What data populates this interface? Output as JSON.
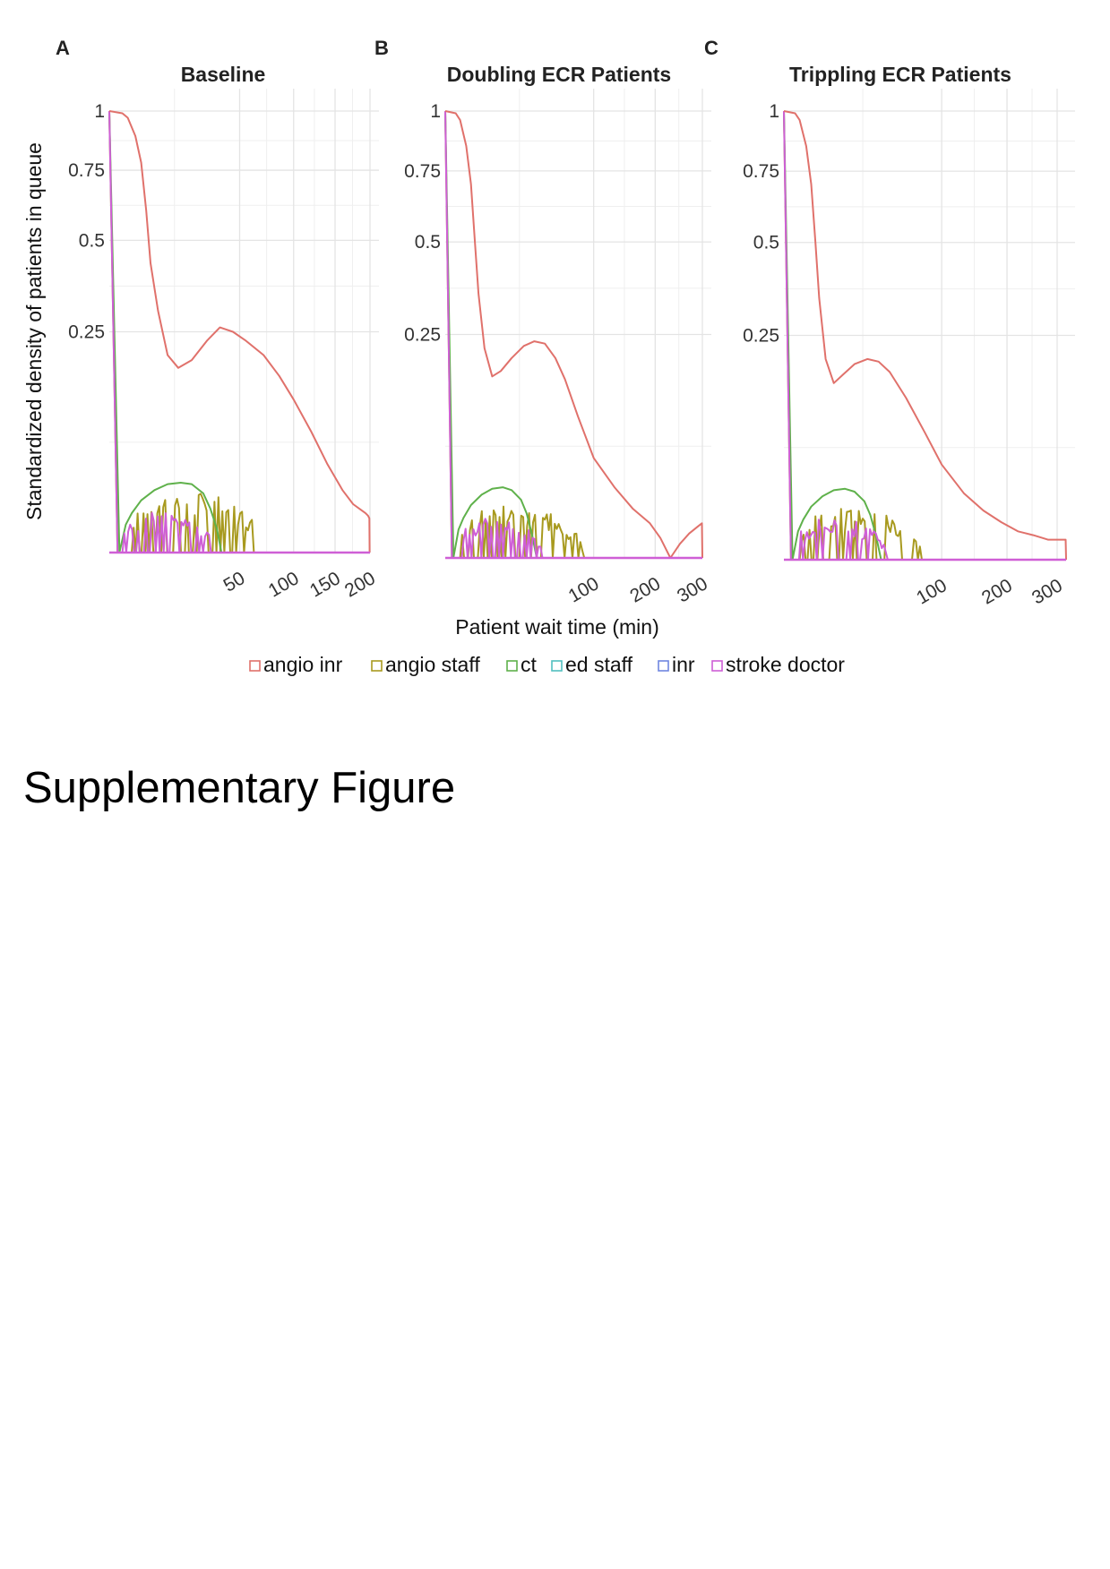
{
  "figure": {
    "y_axis_title": "Standardized density of patients in queue",
    "x_axis_title": "Patient wait time (min)",
    "legend": [
      {
        "label": "angio inr",
        "color": "#e0716b"
      },
      {
        "label": "angio staff",
        "color": "#a89a1f"
      },
      {
        "label": "ct",
        "color": "#5fb14b"
      },
      {
        "label": "ed staff",
        "color": "#52bfbf"
      },
      {
        "label": "inr",
        "color": "#6f86e0"
      },
      {
        "label": "stroke doctor",
        "color": "#cf5fd6"
      }
    ]
  },
  "caption": "Supplementary Figure",
  "chart_data": [
    {
      "type": "line",
      "panel": "A",
      "title": "Baseline",
      "x_scale": "sqrt",
      "y_scale": "sqrt",
      "xlim": [
        0,
        200
      ],
      "ylim": [
        0,
        1
      ],
      "x_ticks": [
        50,
        100,
        150,
        200
      ],
      "x_tick_labels": [
        "50",
        "100",
        "150",
        "200"
      ],
      "y_ticks": [
        0.25,
        0.5,
        0.75,
        1
      ],
      "y_tick_labels": [
        "0.25",
        "0.5",
        "0.75",
        "1"
      ],
      "grid": true,
      "series": [
        {
          "name": "angio inr",
          "x": [
            0,
            0.5,
            1,
            2,
            3,
            4,
            5,
            7,
            10,
            14,
            20,
            28,
            36,
            45,
            55,
            70,
            85,
            100,
            120,
            140,
            160,
            175,
            188,
            193,
            197,
            199,
            199.5
          ],
          "y": [
            1.0,
            0.99,
            0.97,
            0.89,
            0.78,
            0.6,
            0.43,
            0.3,
            0.2,
            0.175,
            0.19,
            0.23,
            0.26,
            0.25,
            0.23,
            0.2,
            0.16,
            0.12,
            0.075,
            0.04,
            0.02,
            0.012,
            0.009,
            0.008,
            0.007,
            0.006,
            0.0
          ]
        },
        {
          "name": "ct",
          "x": [
            0,
            0.3,
            0.8,
            1.5,
            3,
            6,
            10,
            15,
            20,
            26,
            30,
            34,
            37
          ],
          "y": [
            1.0,
            0.0,
            0.004,
            0.008,
            0.014,
            0.02,
            0.024,
            0.025,
            0.024,
            0.018,
            0.01,
            0.003,
            0.0
          ]
        },
        {
          "name": "angio staff",
          "x_range": [
            1,
            90
          ],
          "y_max": 0.027
        },
        {
          "name": "stroke doctor",
          "x_range": [
            0.5,
            40
          ],
          "y_max": 0.012
        },
        {
          "name": "ed staff",
          "x_range": [
            0,
            200
          ],
          "y_max": 0
        },
        {
          "name": "inr",
          "x_range": [
            0,
            200
          ],
          "y_max": 0
        }
      ]
    },
    {
      "type": "line",
      "panel": "B",
      "title": "Doubling ECR Patients",
      "x_scale": "sqrt",
      "y_scale": "sqrt",
      "xlim": [
        0,
        300
      ],
      "ylim": [
        0,
        1
      ],
      "x_ticks": [
        100,
        200,
        300
      ],
      "x_tick_labels": [
        "100",
        "200",
        "300"
      ],
      "y_ticks": [
        0.25,
        0.5,
        0.75,
        1
      ],
      "y_tick_labels": [
        "0.25",
        "0.5",
        "0.75",
        "1"
      ],
      "grid": true,
      "series": [
        {
          "name": "angio inr",
          "x": [
            0,
            0.5,
            1,
            2,
            3,
            4,
            5,
            7,
            10,
            14,
            20,
            28,
            36,
            45,
            55,
            65,
            80,
            100,
            130,
            160,
            190,
            210,
            230,
            250,
            270,
            290,
            299,
            300
          ],
          "y": [
            1.0,
            0.99,
            0.96,
            0.85,
            0.7,
            0.5,
            0.35,
            0.22,
            0.165,
            0.175,
            0.2,
            0.225,
            0.235,
            0.23,
            0.2,
            0.16,
            0.1,
            0.05,
            0.025,
            0.012,
            0.006,
            0.002,
            0.0,
            0.001,
            0.003,
            0.005,
            0.006,
            0.0
          ]
        },
        {
          "name": "ct",
          "x": [
            0,
            0.3,
            0.8,
            1.5,
            3,
            6,
            10,
            15,
            20,
            26,
            30,
            34,
            38
          ],
          "y": [
            1.0,
            0.0,
            0.004,
            0.008,
            0.014,
            0.02,
            0.024,
            0.025,
            0.023,
            0.017,
            0.01,
            0.003,
            0.0
          ]
        },
        {
          "name": "angio staff",
          "x_range": [
            1,
            110
          ],
          "y_max": 0.02
        },
        {
          "name": "stroke doctor",
          "x_range": [
            0.5,
            55
          ],
          "y_max": 0.011
        },
        {
          "name": "ed staff",
          "x_range": [
            0,
            300
          ],
          "y_max": 0
        },
        {
          "name": "inr",
          "x_range": [
            0,
            300
          ],
          "y_max": 0
        }
      ]
    },
    {
      "type": "line",
      "panel": "C",
      "title": "Trippling ECR Patients",
      "x_scale": "sqrt",
      "y_scale": "sqrt",
      "xlim": [
        0,
        320
      ],
      "ylim": [
        0,
        1
      ],
      "x_ticks": [
        100,
        200,
        300
      ],
      "x_tick_labels": [
        "100",
        "200",
        "300"
      ],
      "y_ticks": [
        0.25,
        0.5,
        0.75,
        1
      ],
      "y_tick_labels": [
        "0.25",
        "0.5",
        "0.75",
        "1"
      ],
      "grid": true,
      "series": [
        {
          "name": "angio inr",
          "x": [
            0,
            0.5,
            1,
            2,
            3,
            4,
            5,
            7,
            10,
            14,
            20,
            28,
            36,
            45,
            60,
            80,
            100,
            130,
            160,
            190,
            220,
            250,
            280,
            310,
            319,
            320
          ],
          "y": [
            1.0,
            0.99,
            0.96,
            0.85,
            0.7,
            0.5,
            0.34,
            0.2,
            0.155,
            0.17,
            0.19,
            0.2,
            0.195,
            0.175,
            0.13,
            0.08,
            0.045,
            0.022,
            0.012,
            0.007,
            0.004,
            0.003,
            0.002,
            0.002,
            0.002,
            0.0
          ]
        },
        {
          "name": "ct",
          "x": [
            0,
            0.3,
            0.8,
            1.5,
            3,
            6,
            10,
            15,
            20,
            26,
            30,
            34,
            38
          ],
          "y": [
            1.0,
            0.0,
            0.004,
            0.008,
            0.014,
            0.02,
            0.024,
            0.025,
            0.023,
            0.017,
            0.01,
            0.003,
            0.0
          ]
        },
        {
          "name": "angio staff",
          "x_range": [
            1,
            100
          ],
          "y_max": 0.018
        },
        {
          "name": "stroke doctor",
          "x_range": [
            0.5,
            55
          ],
          "y_max": 0.012
        },
        {
          "name": "ed staff",
          "x_range": [
            0,
            320
          ],
          "y_max": 0
        },
        {
          "name": "inr",
          "x_range": [
            0,
            320
          ],
          "y_max": 0
        }
      ]
    }
  ]
}
